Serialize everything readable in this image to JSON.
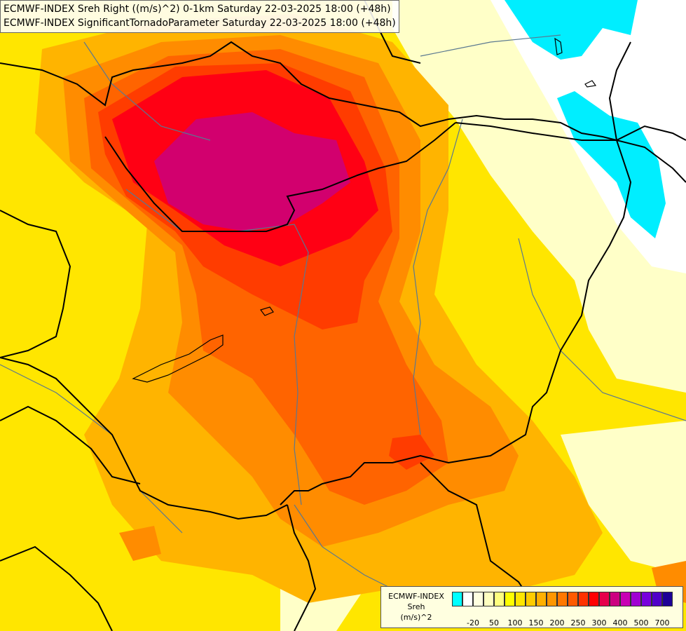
{
  "title": {
    "line1": "ECMWF-INDEX Sreh Right ((m/s)^2) 0-1km Saturday 22-03-2025 18:00 (+48h)",
    "line2": "ECMWF-INDEX SignificantTornadoParameter Saturday 22-03-2025 18:00 (+48h)"
  },
  "legend": {
    "source": "ECMWF-INDEX",
    "parameter": "Sreh",
    "unit": "(m/s)^2",
    "colors": [
      "#00ffff",
      "#ffffff",
      "#ffffe0",
      "#ffffc0",
      "#ffff80",
      "#ffff00",
      "#ffe600",
      "#ffcc00",
      "#ffb000",
      "#ff9600",
      "#ff7800",
      "#ff5a00",
      "#ff3200",
      "#ff0000",
      "#e6004b",
      "#cc0080",
      "#c800b4",
      "#a000d2",
      "#7800dc",
      "#5000c8",
      "#1e0096"
    ],
    "ticks": [
      "-20",
      "50",
      "100",
      "150",
      "200",
      "250",
      "300",
      "400",
      "500",
      "700"
    ]
  },
  "map": {
    "colors": {
      "background": "#ffe600",
      "cyan": "#00eeff",
      "white": "#ffffff",
      "pale": "#ffffc8",
      "orange_light": "#ffb400",
      "orange": "#ff8c00",
      "orange_dark": "#ff6400",
      "red_orange": "#ff3c00",
      "red": "#ff0014",
      "magenta": "#d2006e",
      "borders": "#000000",
      "rivers": "#5a7890"
    }
  }
}
